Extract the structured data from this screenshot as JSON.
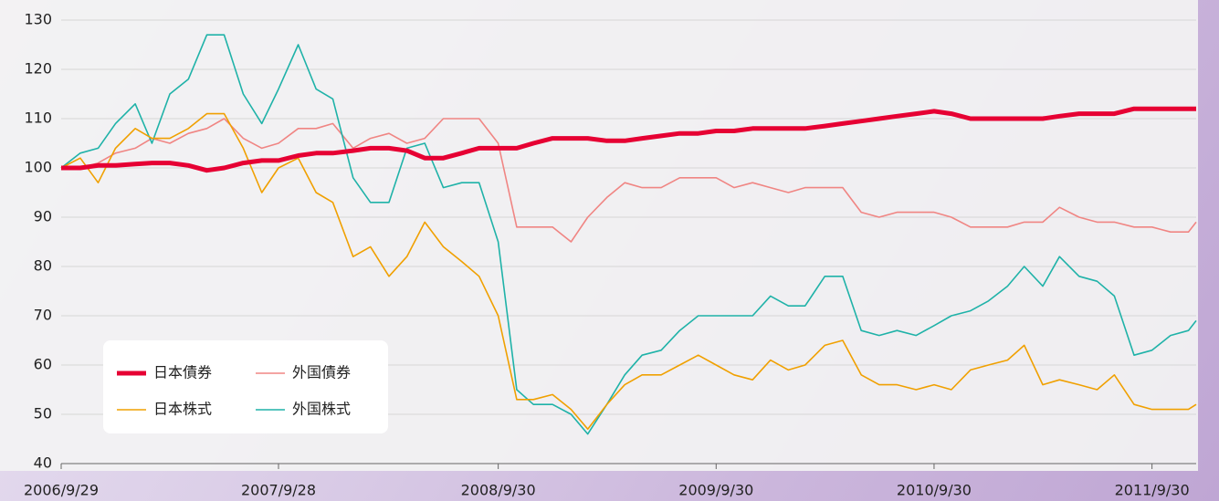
{
  "chart_data": {
    "type": "line",
    "x": [
      "2006/9/29",
      "2006/10/31",
      "2006/11/30",
      "2006/12/29",
      "2007/1/31",
      "2007/2/28",
      "2007/3/30",
      "2007/4/30",
      "2007/5/31",
      "2007/6/29",
      "2007/7/31",
      "2007/8/31",
      "2007/9/28",
      "2007/10/31",
      "2007/11/30",
      "2007/12/28",
      "2008/1/31",
      "2008/2/29",
      "2008/3/31",
      "2008/4/30",
      "2008/5/30",
      "2008/6/30",
      "2008/7/31",
      "2008/8/29",
      "2008/9/30",
      "2008/10/31",
      "2008/11/28",
      "2008/12/30",
      "2009/1/30",
      "2009/2/27",
      "2009/3/31",
      "2009/4/30",
      "2009/5/29",
      "2009/6/30",
      "2009/7/31",
      "2009/8/31",
      "2009/9/30",
      "2009/10/30",
      "2009/11/30",
      "2009/12/30",
      "2010/1/29",
      "2010/2/26",
      "2010/3/31",
      "2010/4/30",
      "2010/5/31",
      "2010/6/30",
      "2010/7/30",
      "2010/8/31",
      "2010/9/30",
      "2010/10/29",
      "2010/11/30",
      "2010/12/30",
      "2011/1/31",
      "2011/2/28",
      "2011/3/31",
      "2011/4/28",
      "2011/5/31",
      "2011/6/30",
      "2011/7/29",
      "2011/8/31",
      "2011/9/30",
      "2011/10/31",
      "2011/11/30",
      "2011/12/13"
    ],
    "series": [
      {
        "name": "日本債券",
        "color": "#e60033",
        "width": 5,
        "values": [
          100,
          100,
          100.5,
          100.5,
          100.8,
          101,
          101,
          100.5,
          99.5,
          100,
          101,
          101.5,
          101.5,
          102.5,
          103,
          103,
          103.5,
          104,
          104,
          103.5,
          102,
          102,
          103,
          104,
          104,
          104,
          105,
          106,
          106,
          106,
          105.5,
          105.5,
          106,
          106.5,
          107,
          107,
          107.5,
          107.5,
          108,
          108,
          108,
          108,
          108.5,
          109,
          109.5,
          110,
          110.5,
          111,
          111.5,
          111,
          110,
          110,
          110,
          110,
          110,
          110.5,
          111,
          111,
          111,
          112,
          112,
          112,
          112,
          112
        ]
      },
      {
        "name": "外国債券",
        "color": "#f08583",
        "width": 1.6,
        "values": [
          100,
          100,
          101,
          103,
          104,
          106,
          105,
          107,
          108,
          110,
          106,
          104,
          105,
          108,
          108,
          109,
          104,
          106,
          107,
          105,
          106,
          110,
          110,
          110,
          105,
          88,
          88,
          88,
          85,
          90,
          94,
          97,
          96,
          96,
          98,
          98,
          98,
          96,
          97,
          96,
          95,
          96,
          96,
          96,
          91,
          90,
          91,
          91,
          91,
          90,
          88,
          88,
          88,
          89,
          89,
          92,
          90,
          89,
          89,
          88,
          88,
          87,
          87,
          89
        ]
      },
      {
        "name": "日本株式",
        "color": "#f0a000",
        "width": 1.6,
        "values": [
          100,
          102,
          97,
          104,
          108,
          106,
          106,
          108,
          111,
          111,
          104,
          95,
          100,
          102,
          95,
          93,
          82,
          84,
          78,
          82,
          89,
          84,
          81,
          78,
          70,
          53,
          53,
          54,
          51,
          47,
          52,
          56,
          58,
          58,
          60,
          62,
          60,
          58,
          57,
          61,
          59,
          60,
          64,
          65,
          58,
          56,
          56,
          55,
          56,
          55,
          59,
          60,
          61,
          64,
          56,
          57,
          56,
          55,
          58,
          52,
          51,
          51,
          51,
          52
        ]
      },
      {
        "name": "外国株式",
        "color": "#1fb2a8",
        "width": 1.6,
        "values": [
          100,
          103,
          104,
          109,
          113,
          105,
          115,
          118,
          127,
          127,
          115,
          109,
          116,
          125,
          116,
          114,
          98,
          93,
          93,
          104,
          105,
          96,
          97,
          97,
          85,
          55,
          52,
          52,
          50,
          46,
          52,
          58,
          62,
          63,
          67,
          70,
          70,
          70,
          70,
          74,
          72,
          72,
          78,
          78,
          67,
          66,
          67,
          66,
          68,
          70,
          71,
          73,
          76,
          80,
          76,
          82,
          78,
          77,
          74,
          62,
          63,
          66,
          67,
          69
        ]
      }
    ],
    "xlim": [
      "2006/9/29",
      "2011/12/13"
    ],
    "xticks": [
      "2006/9/29",
      "2007/9/28",
      "2008/9/30",
      "2009/9/30",
      "2010/9/30",
      "2011/9/30"
    ],
    "ylim": [
      40,
      130
    ],
    "yticks": [
      40,
      50,
      60,
      70,
      80,
      90,
      100,
      110,
      120,
      130
    ],
    "grid": true,
    "legend": "lower left"
  }
}
